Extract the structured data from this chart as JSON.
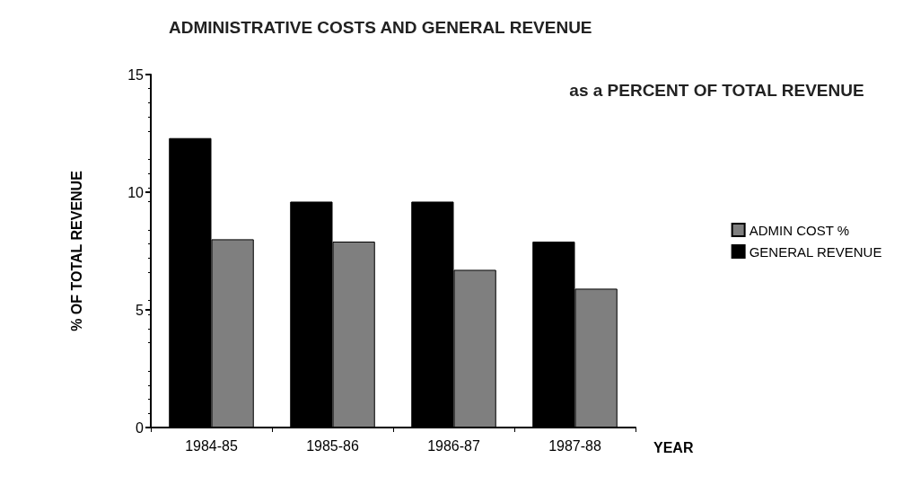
{
  "chart_data": {
    "type": "bar",
    "title": "ADMINISTRATIVE COSTS AND GENERAL REVENUE",
    "subtitle": "as a PERCENT OF TOTAL REVENUE",
    "xlabel": "YEAR",
    "ylabel": "% OF TOTAL REVENUE",
    "categories": [
      "1984-85",
      "1985-86",
      "1986-87",
      "1987-88"
    ],
    "series": [
      {
        "name": "GENERAL REVENUE",
        "color": "#000000",
        "values": [
          12.3,
          9.6,
          9.6,
          7.9
        ]
      },
      {
        "name": "ADMIN COST %",
        "color": "#7f7f7f",
        "values": [
          8.0,
          7.9,
          6.7,
          5.9
        ]
      }
    ],
    "ylim": [
      0,
      15
    ],
    "yticks": [
      0,
      5,
      10,
      15
    ],
    "grid": false,
    "legend": "right"
  }
}
